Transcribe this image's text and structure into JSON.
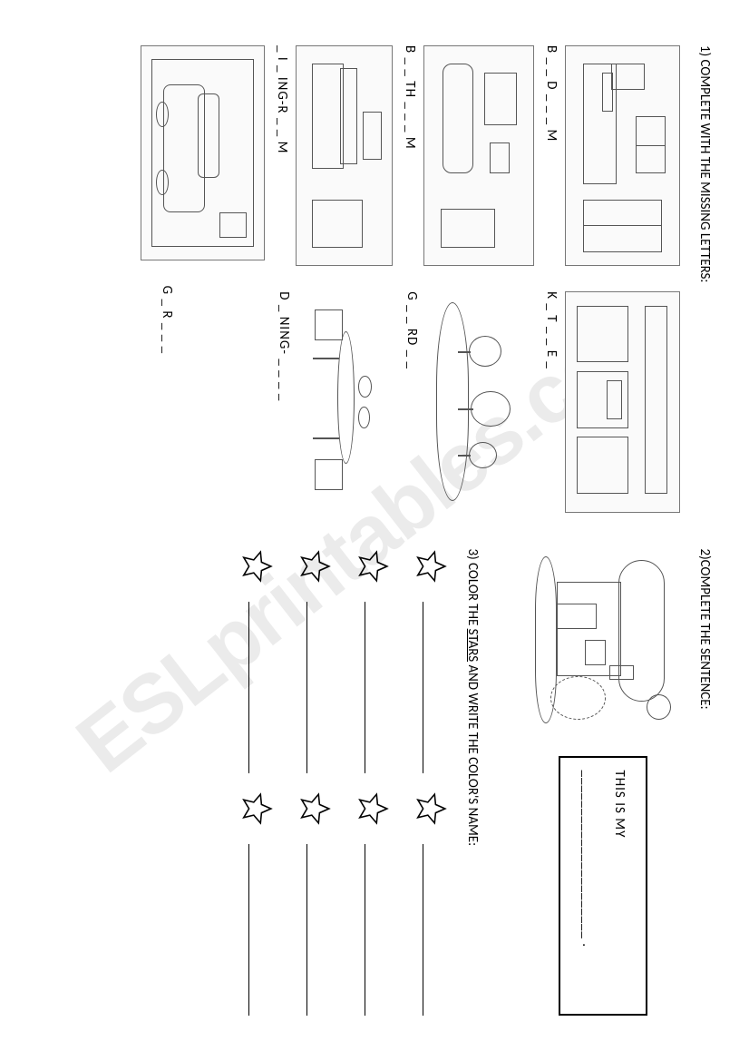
{
  "watermark": "ESLprintables.com",
  "ex1": {
    "heading": "1) COMPLETE WITH THE MISSING LETTERS:",
    "items": [
      {
        "caption": "B _ _ D _ _ _ M"
      },
      {
        "caption": "K _ T _ _ E _"
      },
      {
        "caption": "B _ _ TH _ _ _ M"
      },
      {
        "caption": "G _ _ RD _ _"
      },
      {
        "caption": "_ I _ ING-R _ _ M"
      },
      {
        "caption": "D _ NING- _ _ _ _"
      },
      {
        "caption": "G _ R _ _ _"
      }
    ]
  },
  "ex2": {
    "heading": "2)COMPLETE THE SENTENCE:",
    "sentence_prefix": "THIS IS MY",
    "sentence_blank": "______________________ ."
  },
  "ex3": {
    "heading": "3) COLOR THE  STARS AND WRITE THE COLOR'S NAME:",
    "rows": 4,
    "stars_per_row": 2
  },
  "colors": {
    "text": "#000000",
    "background": "#ffffff",
    "sketch_stroke": "#555555",
    "sketch_border": "#777777",
    "watermark": "rgba(0,0,0,0.08)"
  },
  "typography": {
    "body_font": "Calibri, Arial, sans-serif",
    "heading_size_pt": 11,
    "caption_size_pt": 11
  }
}
